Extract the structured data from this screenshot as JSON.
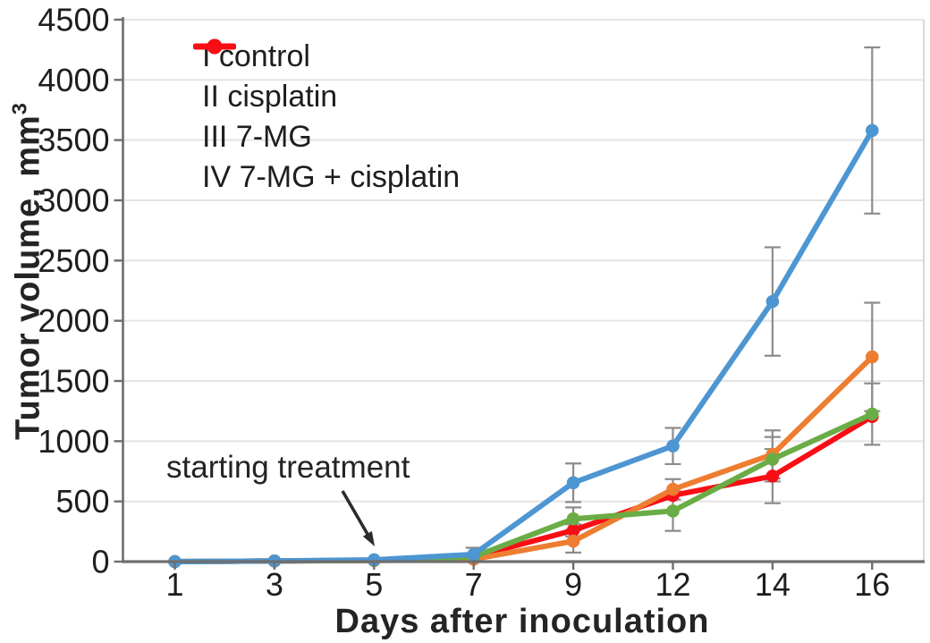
{
  "labels": {
    "ylabel_base": "Tumor volume, mm",
    "ylabel_exp": "3",
    "xlabel": "Days after inoculation",
    "annotation": "starting treatment"
  },
  "chart_data": {
    "type": "line",
    "title": "",
    "xlabel": "Days after inoculation",
    "ylabel": "Tumor volume, mm³",
    "categories": [
      1,
      3,
      5,
      7,
      9,
      12,
      14,
      16
    ],
    "yticks": [
      0,
      500,
      1000,
      1500,
      2000,
      2500,
      3000,
      3500,
      4000,
      4500
    ],
    "ylim": [
      0,
      4500
    ],
    "grid": "horizontal-light-gray",
    "legend_position": "top-left-inside",
    "annotation": {
      "text": "starting treatment",
      "points_to_day": 5
    },
    "error_bar_color": "#8c8c8c",
    "axis_color": "#6e6e6e",
    "gridline_color": "#e4e4e4",
    "series": [
      {
        "name": "I control",
        "color": "#4d96d2",
        "values": [
          0,
          5,
          15,
          60,
          655,
          960,
          2160,
          3580
        ],
        "errors": [
          0,
          0,
          0,
          55,
          160,
          150,
          450,
          690
        ]
      },
      {
        "name": "II cisplatin",
        "color": "#6aac45",
        "values": [
          0,
          5,
          10,
          40,
          355,
          420,
          850,
          1225
        ],
        "errors": [
          0,
          0,
          0,
          0,
          95,
          165,
          185,
          255
        ]
      },
      {
        "name": "III 7-MG",
        "color": "#ee7d31",
        "values": [
          0,
          5,
          10,
          20,
          170,
          600,
          890,
          1700
        ],
        "errors": [
          0,
          0,
          0,
          0,
          95,
          85,
          200,
          450
        ]
      },
      {
        "name": "IV 7-MG + cisplatin",
        "color": "#f90d15",
        "values": [
          0,
          5,
          10,
          40,
          260,
          550,
          710,
          1205
        ],
        "errors": [
          0,
          0,
          0,
          0,
          50,
          0,
          225,
          0
        ]
      }
    ]
  }
}
